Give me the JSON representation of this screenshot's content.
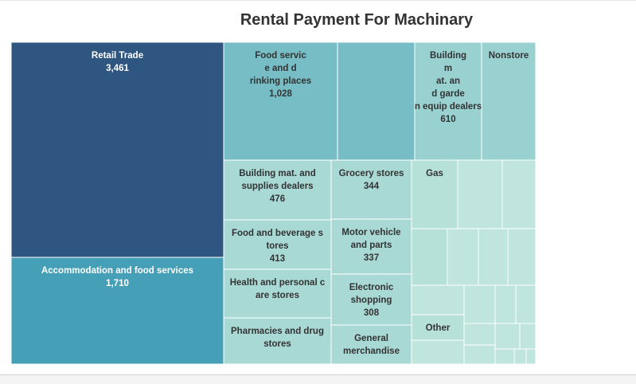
{
  "chart_data": {
    "type": "treemap",
    "title": "Rental Payment For Machinary",
    "items": [
      {
        "label": "Retail Trade",
        "value": 3461,
        "value_text": "3,461",
        "color": "#2e5680"
      },
      {
        "label": "Accommodation and food services",
        "value": 1710,
        "value_text": "1,710",
        "color": "#459fb6"
      },
      {
        "label": "Food service and drinking places",
        "value": 1028,
        "value_text": "1,028",
        "color": "#76bdc5"
      },
      {
        "label": "Building mat. and garden equip dealers",
        "value": 610,
        "value_text": "610",
        "color": "#99d1d1"
      },
      {
        "label": "Nonstore",
        "value": null,
        "value_text": "",
        "color": "#99d1d1"
      },
      {
        "label": "Building mat. and supplies dealers",
        "value": 476,
        "value_text": "476",
        "color": "#a8d9d5"
      },
      {
        "label": "Food and beverage stores",
        "value": 413,
        "value_text": "413",
        "color": "#a8d9d5"
      },
      {
        "label": "Health and personal care stores",
        "value": null,
        "value_text": "",
        "color": "#a8d9d5"
      },
      {
        "label": "Pharmacies and drug stores",
        "value": null,
        "value_text": "",
        "color": "#a8d9d5"
      },
      {
        "label": "Grocery stores",
        "value": 344,
        "value_text": "344",
        "color": "#a8d9d5"
      },
      {
        "label": "Motor vehicle and parts",
        "value": 337,
        "value_text": "337",
        "color": "#a8d9d5"
      },
      {
        "label": "Electronic shopping",
        "value": 308,
        "value_text": "308",
        "color": "#a8d9d5"
      },
      {
        "label": "General merchandise",
        "value": null,
        "value_text": "",
        "color": "#a8d9d5"
      },
      {
        "label": "Gas",
        "value": null,
        "value_text": "",
        "color": "#b6e1d9"
      },
      {
        "label": "Other",
        "value": null,
        "value_text": "",
        "color": "#b6e1d9"
      }
    ],
    "colors": {
      "dark": "#2e5680",
      "teal": "#459fb6",
      "mid": "#76bdc5",
      "light": "#99d1d1",
      "lighter": "#a8d9d5",
      "lightest": "#b6e1d9",
      "pale": "#bfe5dd",
      "border": "#ffffff"
    }
  }
}
